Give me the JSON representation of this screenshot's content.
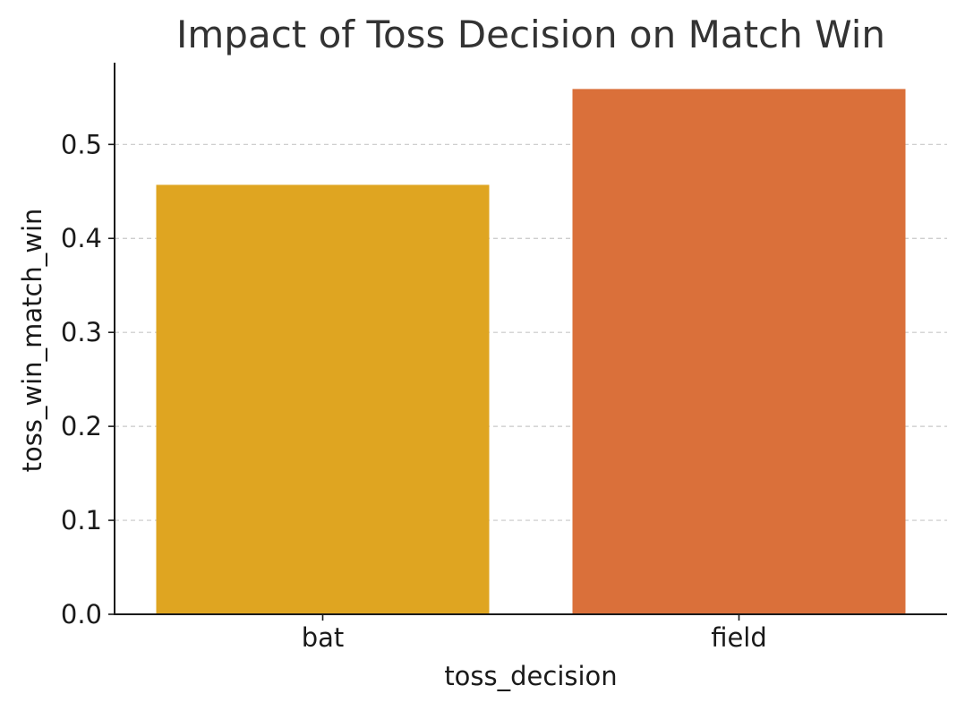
{
  "chart_data": {
    "type": "bar",
    "title": "Impact of Toss Decision on Match Win",
    "xlabel": "toss_decision",
    "ylabel": "toss_win_match_win",
    "categories": [
      "bat",
      "field"
    ],
    "values": [
      0.457,
      0.559
    ],
    "colors": [
      "#dfa521",
      "#da703a"
    ],
    "ylim": [
      0,
      0.587
    ],
    "yticks": [
      0.0,
      0.1,
      0.2,
      0.3,
      0.4,
      0.5
    ],
    "ytick_labels": [
      "0.0",
      "0.1",
      "0.2",
      "0.3",
      "0.4",
      "0.5"
    ],
    "grid": "horizontal-dashed",
    "legend": "none"
  }
}
